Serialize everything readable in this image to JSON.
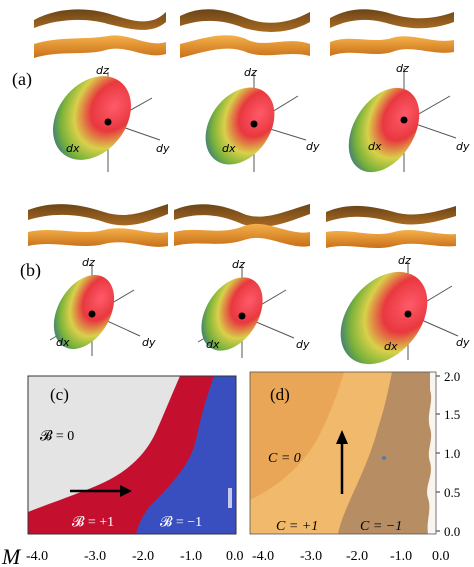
{
  "panel_a": {
    "label": "(a)",
    "axes": [
      {
        "dz": "dz",
        "dx": "dx",
        "dy": "dy"
      },
      {
        "dz": "dz",
        "dx": "dx",
        "dy": "dy"
      },
      {
        "dz": "dz",
        "dx": "dx",
        "dy": "dy"
      }
    ]
  },
  "panel_b": {
    "label": "(b)",
    "axes": [
      {
        "dz": "dz",
        "dx": "dx",
        "dy": "dy"
      },
      {
        "dz": "dz",
        "dx": "dx",
        "dy": "dy"
      },
      {
        "dz": "dz",
        "dx": "dx",
        "dy": "dy"
      }
    ]
  },
  "panel_c": {
    "label": "(c)",
    "region_labels": [
      "𝓑 = 0",
      "𝓑 = +1",
      "𝓑 = −1"
    ]
  },
  "panel_d": {
    "label": "(d)",
    "region_labels": [
      "C = 0",
      "C = +1",
      "C = −1"
    ],
    "right_axis_ticks": [
      "2.0",
      "1.5",
      "1.0",
      "0.5",
      "0.0"
    ]
  },
  "bottom_axis": {
    "label": "M",
    "ticks_c": [
      "-4.0",
      "-3.0",
      "-2.0",
      "-1.0",
      "0.0"
    ],
    "ticks_d": [
      "-4.0",
      "-3.0",
      "-2.0",
      "-1.0",
      "0.0"
    ]
  },
  "colors": {
    "band_orange": "#e8962f",
    "band_dark": "#5a3a12",
    "c_gray": "#e4e4e4",
    "c_red": "#c4102e",
    "c_blue": "#3a4fbf",
    "d_light": "#e9a656",
    "d_mid": "#f0b96c",
    "d_dark": "#b78e63"
  }
}
